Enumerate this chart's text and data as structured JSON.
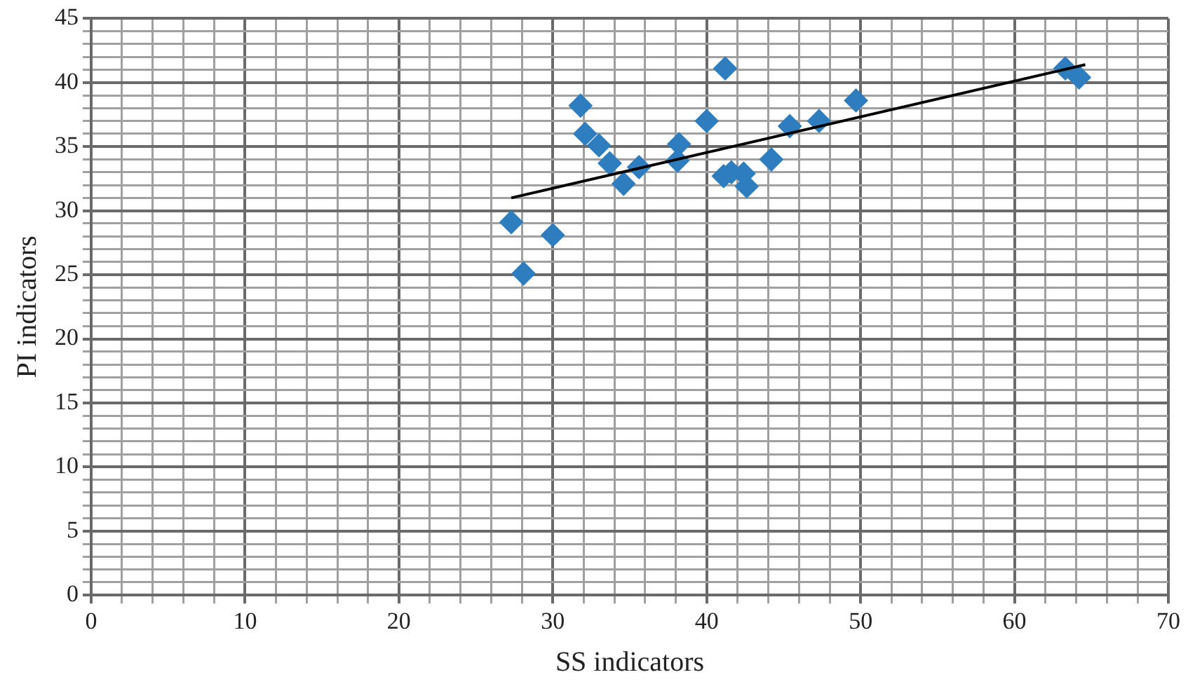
{
  "chart_data": {
    "type": "scatter",
    "xlabel": "SS indicators",
    "ylabel": "PI indicators",
    "xlim": [
      0,
      70
    ],
    "ylim": [
      0,
      45
    ],
    "xticks": [
      0,
      {
        "value": 2,
        "label": null
      },
      {
        "value": 4,
        "label": null
      },
      {
        "value": 6,
        "label": null
      },
      {
        "value": 8,
        "label": null
      },
      10,
      {
        "value": 12,
        "label": null
      },
      {
        "value": 14,
        "label": null
      },
      {
        "value": 16,
        "label": null
      },
      {
        "value": 18,
        "label": null
      },
      20,
      {
        "value": 22,
        "label": null
      },
      {
        "value": 24,
        "label": null
      },
      {
        "value": 26,
        "label": null
      },
      {
        "value": 28,
        "label": null
      },
      30,
      {
        "value": 32,
        "label": null
      },
      {
        "value": 34,
        "label": null
      },
      {
        "value": 36,
        "label": null
      },
      {
        "value": 38,
        "label": null
      },
      40,
      {
        "value": 42,
        "label": null
      },
      {
        "value": 44,
        "label": null
      },
      {
        "value": 46,
        "label": null
      },
      {
        "value": 48,
        "label": null
      },
      50,
      {
        "value": 52,
        "label": null
      },
      {
        "value": 54,
        "label": null
      },
      {
        "value": 56,
        "label": null
      },
      {
        "value": 58,
        "label": null
      },
      60,
      {
        "value": 62,
        "label": null
      },
      {
        "value": 64,
        "label": null
      },
      {
        "value": 66,
        "label": null
      },
      {
        "value": 68,
        "label": null
      },
      70
    ],
    "yticks": [
      0,
      {
        "value": 1,
        "label": null
      },
      {
        "value": 2,
        "label": null
      },
      {
        "value": 3,
        "label": null
      },
      {
        "value": 4,
        "label": null
      },
      5,
      {
        "value": 6,
        "label": null
      },
      {
        "value": 7,
        "label": null
      },
      {
        "value": 8,
        "label": null
      },
      {
        "value": 9,
        "label": null
      },
      10,
      {
        "value": 11,
        "label": null
      },
      {
        "value": 12,
        "label": null
      },
      {
        "value": 13,
        "label": null
      },
      {
        "value": 14,
        "label": null
      },
      15,
      {
        "value": 16,
        "label": null
      },
      {
        "value": 17,
        "label": null
      },
      {
        "value": 18,
        "label": null
      },
      {
        "value": 19,
        "label": null
      },
      20,
      {
        "value": 21,
        "label": null
      },
      {
        "value": 22,
        "label": null
      },
      {
        "value": 23,
        "label": null
      },
      {
        "value": 24,
        "label": null
      },
      25,
      {
        "value": 26,
        "label": null
      },
      {
        "value": 27,
        "label": null
      },
      {
        "value": 28,
        "label": null
      },
      {
        "value": 29,
        "label": null
      },
      30,
      {
        "value": 31,
        "label": null
      },
      {
        "value": 32,
        "label": null
      },
      {
        "value": 33,
        "label": null
      },
      {
        "value": 34,
        "label": null
      },
      35,
      {
        "value": 36,
        "label": null
      },
      {
        "value": 37,
        "label": null
      },
      {
        "value": 38,
        "label": null
      },
      {
        "value": 39,
        "label": null
      },
      40,
      {
        "value": 41,
        "label": null
      },
      {
        "value": 42,
        "label": null
      },
      {
        "value": 43,
        "label": null
      },
      {
        "value": 44,
        "label": null
      },
      45
    ],
    "grid": true,
    "legend": false,
    "marker": "diamond",
    "series": [
      {
        "type": "scatter",
        "color": "#2e7ebf",
        "x": [
          27.3,
          28.1,
          30.0,
          31.8,
          32.1,
          33.0,
          33.4,
          33.7,
          34.6,
          35.6,
          38.1,
          38.2,
          40.0,
          41.2,
          41.1,
          41.6,
          42.4,
          42.6,
          44.2,
          45.4,
          47.3,
          49.7,
          63.3,
          64.2
        ],
        "values": [
          29.1,
          25.1,
          28.1,
          38.2,
          36.0,
          35.1,
          null,
          33.7,
          32.1,
          33.4,
          33.9,
          35.2,
          37.0,
          41.1,
          32.7,
          33.0,
          32.9,
          31.9,
          34.0,
          36.6,
          37.0,
          38.6,
          41.1,
          40.4
        ]
      },
      {
        "type": "line",
        "color": "#000000",
        "marker": "none",
        "x": [
          27.3,
          64.6
        ],
        "values": [
          31.0,
          41.4
        ]
      }
    ]
  }
}
